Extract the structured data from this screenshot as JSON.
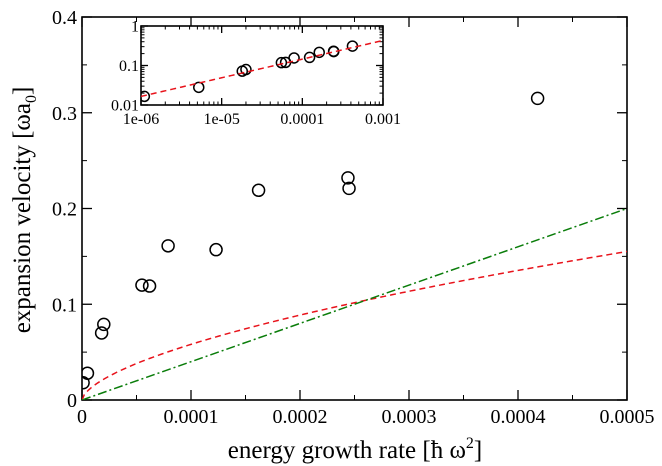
{
  "chart_data": [
    {
      "type": "scatter",
      "title": "",
      "xlabel": "energy growth rate [ħ ω",
      "xlabel_sup": "2",
      "xlabel_close": "]",
      "ylabel": "expansion velocity [ωa",
      "ylabel_sub": "0",
      "ylabel_close": "]",
      "xlim": [
        0,
        0.0005
      ],
      "ylim": [
        0,
        0.4
      ],
      "x_ticks": [
        0,
        0.0001,
        0.0002,
        0.0003,
        0.0004,
        0.0005
      ],
      "x_tick_labels": [
        "0",
        "0.0001",
        "0.0002",
        "0.0003",
        "0.0004",
        "0.0005"
      ],
      "y_ticks": [
        0,
        0.1,
        0.2,
        0.3,
        0.4
      ],
      "y_tick_labels": [
        "0",
        "0.1",
        "0.2",
        "0.3",
        "0.4"
      ],
      "grid": false,
      "legend": "none",
      "series": [
        {
          "kind": "points",
          "marker": "open-circle",
          "color": "#000000",
          "x": [
            1e-06,
            5e-06,
            1.8e-05,
            2e-05,
            5.5e-05,
            6.2e-05,
            7.9e-05,
            0.000123,
            0.000162,
            0.000244,
            0.000245,
            0.000418
          ],
          "y": [
            0.018,
            0.028,
            0.07,
            0.079,
            0.12,
            0.119,
            0.161,
            0.157,
            0.219,
            0.232,
            0.221,
            0.315
          ]
        },
        {
          "kind": "curve",
          "style": "dashed",
          "color": "#e8131b",
          "function": "y = 16*x^0.61",
          "x": [
            0,
            2e-06,
            1e-05,
            3e-05,
            6e-05,
            0.0001,
            0.00015,
            0.0002,
            0.00025,
            0.0003,
            0.00035,
            0.0004,
            0.00045,
            0.0005
          ],
          "y": [
            0,
            0.0054,
            0.0146,
            0.0284,
            0.0433,
            0.0589,
            0.075,
            0.0894,
            0.102,
            0.1138,
            0.125,
            0.1356,
            0.1458,
            0.1556
          ]
        },
        {
          "kind": "line",
          "style": "dash-dot",
          "color": "#0a7d0a",
          "x": [
            0,
            0.0005
          ],
          "y": [
            0,
            0.2
          ]
        }
      ]
    },
    {
      "type": "scatter",
      "title": "",
      "xlabel": "",
      "ylabel": "",
      "xscale": "log",
      "yscale": "log",
      "xlim": [
        1e-06,
        0.001
      ],
      "ylim": [
        0.01,
        1
      ],
      "x_ticks": [
        1e-06,
        1e-05,
        0.0001,
        0.001
      ],
      "x_tick_labels": [
        "1e-06",
        "1e-05",
        "0.0001",
        "0.001"
      ],
      "y_ticks": [
        0.01,
        0.1,
        1
      ],
      "y_tick_labels": [
        "0.01",
        "0.1",
        "1"
      ],
      "grid": false,
      "legend": "none",
      "series": [
        {
          "kind": "points",
          "marker": "open-circle",
          "color": "#000000",
          "x": [
            1.1e-06,
            5.2e-06,
            1.8e-05,
            2e-05,
            5.5e-05,
            6.2e-05,
            7.9e-05,
            0.000123,
            0.000162,
            0.000244,
            0.000245,
            0.000418
          ],
          "y": [
            0.0165,
            0.028,
            0.072,
            0.079,
            0.118,
            0.12,
            0.155,
            0.16,
            0.215,
            0.23,
            0.225,
            0.31
          ]
        },
        {
          "kind": "curve",
          "style": "dashed",
          "color": "#e8131b",
          "x": [
            1e-06,
            1e-05,
            0.0001,
            0.001
          ],
          "y": [
            0.0165,
            0.062,
            0.178,
            0.43
          ]
        }
      ]
    }
  ]
}
